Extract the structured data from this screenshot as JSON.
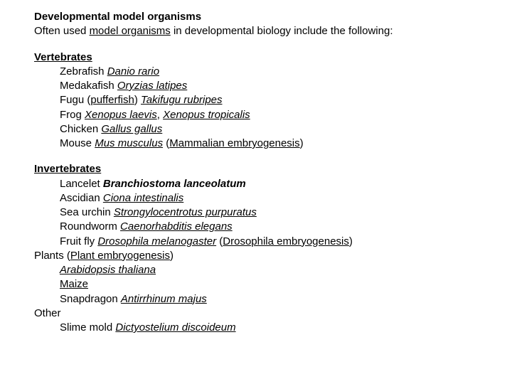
{
  "title": "Developmental model organisms",
  "intro_prefix": "Often used ",
  "intro_link": "model organisms",
  "intro_suffix": " in developmental biology include the following:",
  "vertebrates_heading": "Vertebrates",
  "vertebrates": [
    {
      "common": "Zebrafish",
      "sci": "Danio rario"
    },
    {
      "common": "Medakafish",
      "sci": "Oryzias latipes"
    },
    {
      "common": "Fugu",
      "paren_link": "pufferfish",
      "sci": "Takifugu rubripes"
    },
    {
      "common": "Frog",
      "sci": "Xenopus laevis",
      "sci2": "Xenopus tropicalis"
    },
    {
      "common": "Chicken",
      "sci": "Gallus gallus"
    },
    {
      "common": "Mouse",
      "sci": "Mus musculus",
      "paren_link_after": "Mammalian embryogenesis"
    }
  ],
  "invertebrates_heading": "Invertebrates",
  "invertebrates": [
    {
      "common": "Lancelet",
      "sci_bold": "Branchiostoma lanceolatum"
    },
    {
      "common": "Ascidian",
      "sci": "Ciona intestinalis"
    },
    {
      "common": "Sea urchin",
      "sci": "Strongylocentrotus purpuratus"
    },
    {
      "common": "Roundworm",
      "sci": "Caenorhabditis elegans"
    },
    {
      "common": "Fruit fly",
      "sci": "Drosophila melanogaster",
      "paren_link_after": "Drosophila embryogenesis"
    }
  ],
  "plants_label": "Plants",
  "plants_paren_link": "Plant embryogenesis",
  "plants": [
    {
      "sci": "Arabidopsis thaliana"
    },
    {
      "link": "Maize"
    },
    {
      "common": "Snapdragon",
      "sci": "Antirrhinum majus"
    }
  ],
  "other_label": "Other",
  "other": [
    {
      "common": "Slime mold",
      "sci": "Dictyostelium discoideum"
    }
  ],
  "colors": {
    "text": "#000000",
    "background": "#ffffff"
  },
  "typography": {
    "font_family": "Arial",
    "base_fontsize_pt": 11
  }
}
